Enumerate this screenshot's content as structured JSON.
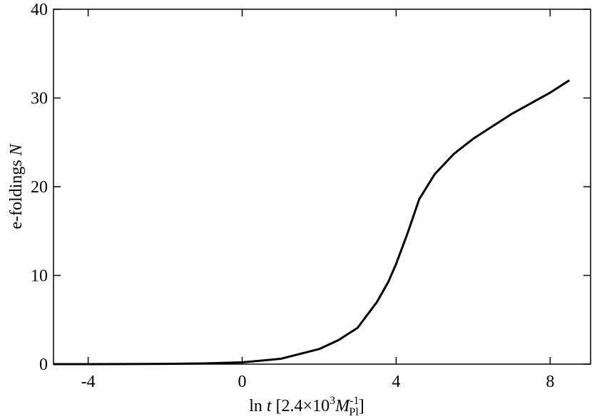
{
  "chart_data": {
    "type": "line",
    "ylabel": {
      "text": "e-foldings ",
      "var": "N"
    },
    "xlabel": {
      "prefix": "ln ",
      "var": "t",
      "mid": " [2.4×10",
      "exp": "3",
      "mass": "M",
      "massexp": "-1",
      "masssub": "Pl",
      "suffix": "]"
    },
    "x": [
      -4.9,
      -3,
      -2,
      -1,
      0,
      1,
      2,
      2.5,
      3,
      3.5,
      3.8,
      4,
      4.3,
      4.6,
      5,
      5.5,
      6,
      7,
      8,
      8.5
    ],
    "series": [
      {
        "color": "#000000",
        "values": [
          0,
          0.01,
          0.03,
          0.08,
          0.2,
          0.6,
          1.7,
          2.7,
          4.1,
          7.0,
          9.3,
          11.3,
          14.8,
          18.6,
          21.4,
          23.7,
          25.4,
          28.2,
          30.6,
          32.0
        ]
      }
    ],
    "xlim": [
      -4.9,
      9.05
    ],
    "ylim": [
      0,
      40
    ],
    "xticks": [
      -4,
      0,
      4,
      8
    ],
    "yticks": [
      0,
      10,
      20,
      30,
      40
    ],
    "grid": false
  }
}
